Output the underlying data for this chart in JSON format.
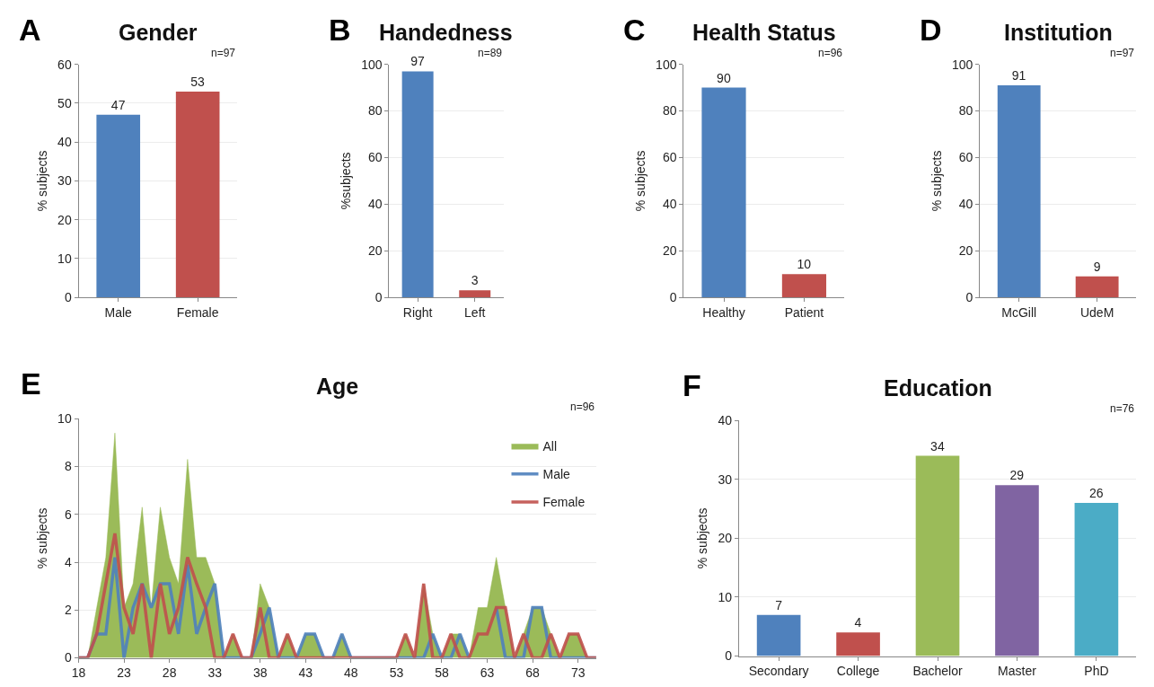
{
  "chart_data": [
    {
      "type": "bar",
      "title": "Gender",
      "ylabel": "% subjects",
      "categories": [
        "Male",
        "Female"
      ],
      "values": [
        47,
        53
      ],
      "colors": [
        "#4f81bd",
        "#c0504d"
      ],
      "ylim": [
        0,
        60
      ],
      "yticks": [
        0,
        10,
        20,
        30,
        40,
        50,
        60
      ],
      "grid": "y",
      "data_labels": true,
      "legend": false,
      "annotations": [
        "A",
        "n=97"
      ]
    },
    {
      "type": "bar",
      "title": "Handedness",
      "ylabel": "%subjects",
      "categories": [
        "Right",
        "Left"
      ],
      "values": [
        97,
        3
      ],
      "colors": [
        "#4f81bd",
        "#c0504d"
      ],
      "ylim": [
        0,
        100
      ],
      "yticks": [
        0,
        20,
        40,
        60,
        80,
        100
      ],
      "grid": "y",
      "data_labels": true,
      "legend": false,
      "annotations": [
        "B",
        "n=89"
      ]
    },
    {
      "type": "bar",
      "title": "Health Status",
      "ylabel": "% subjects",
      "categories": [
        "Healthy",
        "Patient"
      ],
      "values": [
        90,
        10
      ],
      "colors": [
        "#4f81bd",
        "#c0504d"
      ],
      "ylim": [
        0,
        100
      ],
      "yticks": [
        0,
        20,
        40,
        60,
        80,
        100
      ],
      "grid": "y",
      "data_labels": true,
      "legend": false,
      "annotations": [
        "C",
        "n=96"
      ]
    },
    {
      "type": "bar",
      "title": "Institution",
      "ylabel": "% subjects",
      "categories": [
        "McGill",
        "UdeM"
      ],
      "values": [
        91,
        9
      ],
      "colors": [
        "#4f81bd",
        "#c0504d"
      ],
      "ylim": [
        0,
        100
      ],
      "yticks": [
        0,
        20,
        40,
        60,
        80,
        100
      ],
      "grid": "y",
      "data_labels": true,
      "legend": false,
      "annotations": [
        "D",
        "n=97"
      ]
    },
    {
      "type": "line",
      "title": "Age",
      "ylabel": "% subjects",
      "x": [
        18,
        19,
        20,
        21,
        22,
        23,
        24,
        25,
        26,
        27,
        28,
        29,
        30,
        31,
        32,
        33,
        34,
        35,
        36,
        37,
        38,
        39,
        40,
        41,
        42,
        43,
        44,
        45,
        46,
        47,
        48,
        49,
        50,
        51,
        52,
        53,
        54,
        55,
        56,
        57,
        58,
        59,
        60,
        61,
        62,
        63,
        64,
        65,
        66,
        67,
        68,
        69,
        70,
        71,
        72,
        73,
        74,
        75
      ],
      "xlim": [
        18,
        75
      ],
      "xticks": [
        18,
        23,
        28,
        33,
        38,
        43,
        48,
        53,
        58,
        63,
        68,
        73
      ],
      "ylim": [
        0,
        10
      ],
      "yticks": [
        0,
        2,
        4,
        6,
        8,
        10
      ],
      "grid": "y",
      "legend": "top right",
      "annotations": [
        "E",
        "n=96"
      ],
      "series": [
        {
          "name": "All",
          "type": "area",
          "color": "#9bbb59",
          "values": [
            0,
            0,
            2.1,
            4.2,
            9.4,
            2.1,
            3.1,
            6.3,
            2.1,
            6.3,
            4.2,
            3.1,
            8.3,
            4.2,
            4.2,
            3.1,
            0,
            1,
            0,
            0,
            3.1,
            2.1,
            0,
            1,
            0,
            1,
            1,
            0,
            0,
            1,
            0,
            0,
            0,
            0,
            0,
            0,
            1,
            0,
            3.1,
            1,
            0,
            1,
            1,
            0,
            2.1,
            2.1,
            4.2,
            2.1,
            0,
            1,
            2.1,
            2.1,
            1,
            0,
            1,
            1,
            0,
            0
          ]
        },
        {
          "name": "Male",
          "type": "line",
          "color": "#4f81bd",
          "values": [
            0,
            0,
            1,
            1,
            4.2,
            0,
            2.1,
            3.1,
            2.1,
            3.1,
            3.1,
            1,
            3.9,
            1,
            2.1,
            3.1,
            0,
            0,
            0,
            0,
            1,
            2.1,
            0,
            0,
            0,
            1,
            1,
            0,
            0,
            1,
            0,
            0,
            0,
            0,
            0,
            0,
            0,
            0,
            0,
            1,
            0,
            0,
            1,
            0,
            null,
            null,
            2.1,
            0,
            0,
            0,
            2.1,
            2.1,
            0,
            0,
            0,
            0,
            0,
            0
          ]
        },
        {
          "name": "Female",
          "type": "line",
          "color": "#c0504d",
          "values": [
            0,
            0,
            1,
            3.1,
            5.2,
            2.1,
            1,
            3.1,
            0,
            3.1,
            1,
            2.1,
            4.2,
            3.1,
            2.1,
            0,
            0,
            1,
            0,
            0,
            2.1,
            0,
            0,
            1,
            0,
            0,
            0,
            0,
            0,
            0,
            0,
            0,
            0,
            0,
            0,
            0,
            1,
            0,
            3.1,
            0,
            0,
            1,
            0,
            0,
            1,
            1,
            2.1,
            2.1,
            0,
            1,
            0,
            0,
            1,
            0,
            1,
            1,
            0,
            0
          ]
        }
      ]
    },
    {
      "type": "bar",
      "title": "Education",
      "ylabel": "% subjects",
      "categories": [
        "Secondary",
        "College",
        "Bachelor",
        "Master",
        "PhD"
      ],
      "values": [
        7,
        4,
        34,
        29,
        26
      ],
      "colors": [
        "#4f81bd",
        "#c0504d",
        "#9bbb59",
        "#8064a2",
        "#4bacc6"
      ],
      "ylim": [
        0,
        40
      ],
      "yticks": [
        0,
        10,
        20,
        30,
        40
      ],
      "grid": "y",
      "data_labels": true,
      "legend": false,
      "annotations": [
        "F",
        "n=76"
      ]
    }
  ]
}
